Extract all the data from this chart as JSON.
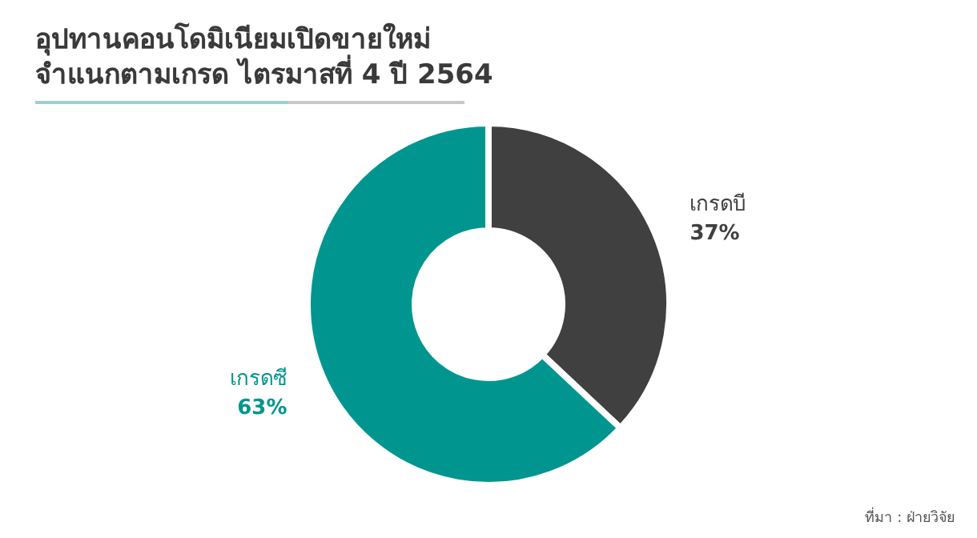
{
  "chart_data": {
    "type": "donut",
    "title": "อุปทานคอนโดมิเนียมเปิดขายใหม่",
    "subtitle": "จำแนกตามเกรด ไตรมาสที่ 4 ปี 2564",
    "categories": [
      "เกรดบี",
      "เกรดซี"
    ],
    "values": [
      37,
      63
    ],
    "colors": [
      "#404041",
      "#00968f"
    ],
    "value_labels": [
      "37%",
      "63%"
    ],
    "annotations": [
      "ที่มา : ฝ่ายวิจัย"
    ]
  }
}
